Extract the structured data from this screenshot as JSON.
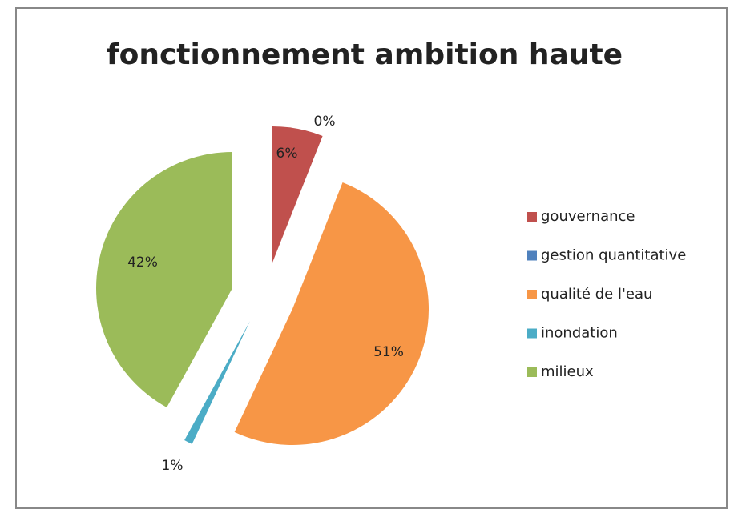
{
  "chart_data": {
    "type": "pie",
    "title": "fonctionnement ambition haute",
    "categories": [
      "gouvernance",
      "gestion quantitative",
      "qualité de l'eau",
      "inondation",
      "milieux"
    ],
    "values": [
      6,
      0,
      51,
      1,
      42
    ],
    "value_labels": [
      "6%",
      "0%",
      "51%",
      "1%",
      "42%"
    ],
    "colors": [
      "#c0504d",
      "#4f81bd",
      "#f79646",
      "#4bacc6",
      "#9bbb59"
    ],
    "legend": "right"
  }
}
